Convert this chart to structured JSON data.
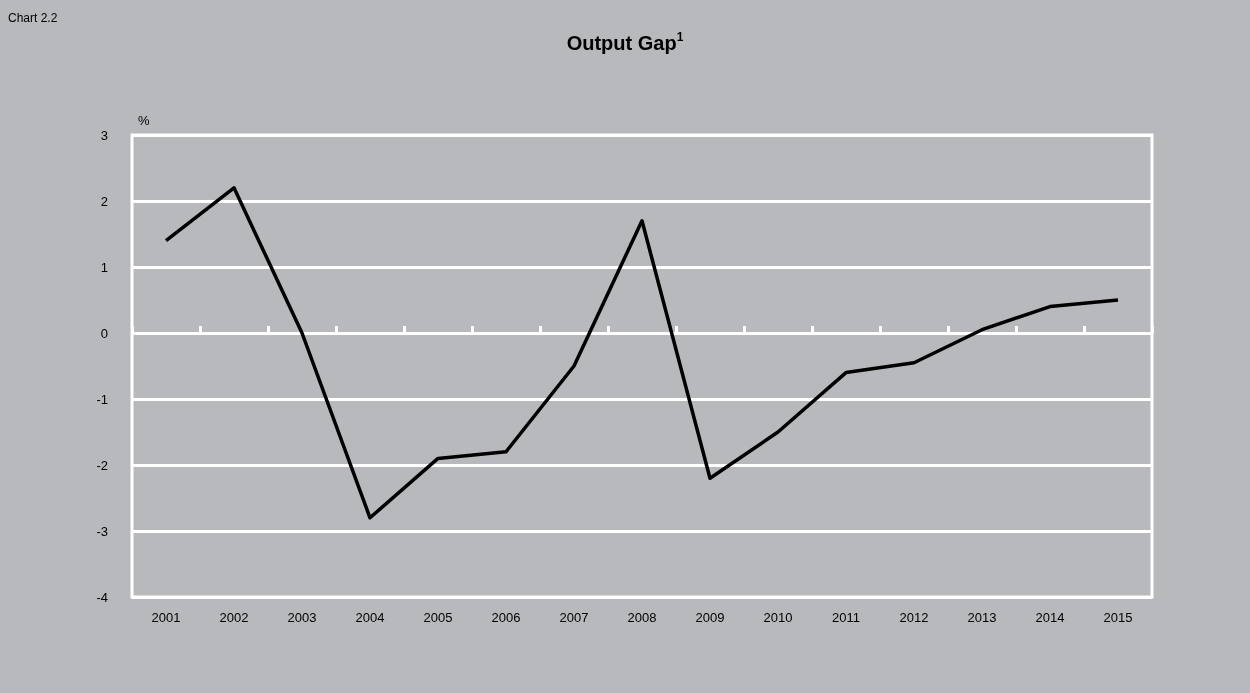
{
  "chart_data": {
    "type": "line",
    "title": "Output Gap$^{1}$",
    "ylabel": "%",
    "annotations": [
      "Chart 2.2"
    ],
    "categories": [
      "2001",
      "2002",
      "2003",
      "2004",
      "2005",
      "2006",
      "2007",
      "2008",
      "2009",
      "2010",
      "2011",
      "2012",
      "2013",
      "2014",
      "2015"
    ],
    "series": [
      {
        "color": "#000000",
        "values": [
          1.4,
          2.2,
          0.0,
          -2.8,
          -1.9,
          -1.8,
          -0.5,
          1.7,
          -2.2,
          -1.5,
          -0.6,
          -0.45,
          0.05,
          0.4,
          0.5
        ]
      }
    ],
    "ylim": [
      -4,
      3
    ],
    "yticks": [
      -4,
      -3,
      -2,
      -1,
      0,
      1,
      2,
      3
    ],
    "grid": "y",
    "marker": "none",
    "line_style": "solid"
  }
}
